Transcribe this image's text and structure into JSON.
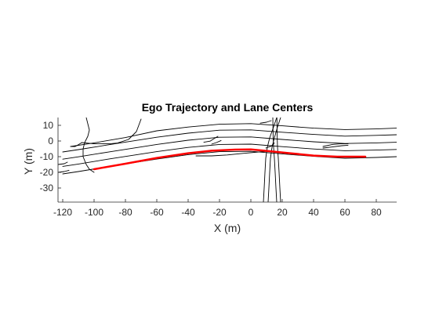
{
  "chart_data": {
    "type": "line",
    "title": "Ego Trajectory and Lane Centers",
    "xlabel": "X (m)",
    "ylabel": "Y (m)",
    "xlim": [
      -123,
      93
    ],
    "ylim": [
      -39,
      15
    ],
    "xticks": [
      -120,
      -100,
      -80,
      -60,
      -40,
      -20,
      0,
      20,
      40,
      60,
      80
    ],
    "yticks": [
      10,
      0,
      -10,
      -20,
      -30
    ],
    "grid": false,
    "box": false,
    "colors": {
      "lanes": "#000000",
      "ego": "#ff0000",
      "axes": "#262626"
    },
    "series": [
      {
        "role": "ego",
        "x": [
          -100,
          -80,
          -60,
          -40,
          -25,
          -10,
          0,
          10,
          25,
          40,
          55,
          65,
          73
        ],
        "y": [
          -18,
          -14.5,
          -10.8,
          -7.8,
          -6.2,
          -5.5,
          -5.4,
          -6.3,
          -7.8,
          -9.3,
          -10.0,
          -10.0,
          -10.0
        ]
      },
      {
        "role": "lane",
        "x": [
          -120,
          -110,
          -90,
          -60,
          -40,
          -20,
          0,
          20,
          40,
          60,
          80,
          93
        ],
        "y": [
          -21,
          -19.5,
          -16.2,
          -11.5,
          -8.7,
          -6.8,
          -6.6,
          -8.2,
          -9.8,
          -11.0,
          -10.5,
          -10.0
        ]
      },
      {
        "role": "lane",
        "x": [
          -120,
          -110,
          -90,
          -60,
          -40,
          -20,
          0,
          20,
          40,
          60,
          80,
          93
        ],
        "y": [
          -16.2,
          -14.7,
          -11.4,
          -6.8,
          -4.1,
          -2.2,
          -2.0,
          -3.6,
          -5.1,
          -6.2,
          -5.8,
          -5.4
        ]
      },
      {
        "role": "lane",
        "x": [
          -120,
          -110,
          -90,
          -60,
          -40,
          -20,
          0,
          20,
          40,
          60,
          80,
          93
        ],
        "y": [
          -11.6,
          -10.1,
          -6.9,
          -2.2,
          0.5,
          2.4,
          2.6,
          1.0,
          -0.5,
          -1.6,
          -1.2,
          -0.8
        ]
      },
      {
        "role": "lane",
        "x": [
          -120,
          -110,
          -90,
          -60,
          -40,
          -20,
          0,
          20,
          40,
          60,
          80,
          93
        ],
        "y": [
          -7.0,
          -5.5,
          -2.3,
          2.4,
          5.0,
          6.9,
          7.1,
          5.6,
          4.2,
          3.1,
          3.6,
          4.0
        ]
      },
      {
        "role": "lane",
        "x": [
          -115,
          -100,
          -80,
          -60,
          -40,
          -20,
          0,
          20,
          40,
          60,
          80,
          93
        ],
        "y": [
          -3.5,
          -1.2,
          2.2,
          6.5,
          8.9,
          10.7,
          11.1,
          9.7,
          8.2,
          7.3,
          7.7,
          8.2
        ]
      },
      {
        "role": "lane",
        "x": [
          -105,
          -104,
          -103,
          -104,
          -106,
          -107,
          -107,
          -105,
          -103,
          -100
        ],
        "y": [
          15,
          11,
          7,
          3,
          -1,
          -5,
          -10,
          -15,
          -18,
          -20
        ]
      },
      {
        "role": "lane",
        "x": [
          -108,
          -100,
          -90,
          -85,
          -78,
          -73,
          -70
        ],
        "y": [
          -1.0,
          -1.8,
          -1.8,
          -1.3,
          1.0,
          6.0,
          14.0
        ]
      },
      {
        "role": "lane",
        "x": [
          -115,
          -112,
          -108
        ],
        "y": [
          -3.5,
          -3.5,
          -1.2
        ]
      },
      {
        "role": "lane",
        "x": [
          -123,
          -119,
          -117
        ],
        "y": [
          -15.0,
          -14.5,
          -13.5
        ]
      },
      {
        "role": "lane",
        "x": [
          -123,
          -119,
          -116
        ],
        "y": [
          -20.0,
          -19.5,
          -18.7
        ]
      },
      {
        "role": "lane",
        "x": [
          8,
          8.5,
          9,
          9.5,
          10.5,
          12,
          14.5,
          16.5
        ],
        "y": [
          -39,
          -30,
          -20,
          -11,
          -4,
          2,
          9,
          15
        ]
      },
      {
        "role": "lane",
        "x": [
          11,
          11.5,
          12,
          12.5,
          13.5,
          15,
          17,
          19
        ],
        "y": [
          -39,
          -30,
          -20,
          -11,
          -4,
          2,
          9,
          15
        ]
      },
      {
        "role": "lane",
        "x": [
          16.5,
          16,
          15.5,
          15,
          14.5,
          14.2,
          14
        ],
        "y": [
          -39,
          -30,
          -20,
          -11,
          -4,
          3,
          15
        ]
      },
      {
        "role": "lane",
        "x": [
          19,
          18.5,
          18,
          17.5,
          17,
          16.8,
          16.6
        ],
        "y": [
          -39,
          -30,
          -20,
          -11,
          -4,
          3,
          15
        ]
      },
      {
        "role": "lane",
        "x": [
          9.5,
          11,
          13,
          15
        ],
        "y": [
          -4.5,
          -4.0,
          -3.3,
          -1.2
        ]
      },
      {
        "role": "lane",
        "x": [
          -30,
          -26,
          -24,
          -21
        ],
        "y": [
          -0.8,
          -0.1,
          1.2,
          3.0
        ]
      },
      {
        "role": "lane",
        "x": [
          -25,
          -22,
          -19
        ],
        "y": [
          -2.0,
          -1.0,
          0.3
        ]
      },
      {
        "role": "lane",
        "x": [
          -35,
          -25,
          -15,
          -5,
          5,
          10
        ],
        "y": [
          -9.5,
          -9.5,
          -8.9,
          -7.9,
          -7.0,
          -6.6
        ]
      },
      {
        "role": "lane",
        "x": [
          46,
          52,
          58,
          62
        ],
        "y": [
          -3.5,
          -2.2,
          -1.7,
          -1.8
        ]
      },
      {
        "role": "lane",
        "x": [
          46,
          52,
          58,
          62
        ],
        "y": [
          -4.5,
          -3.8,
          -3.0,
          -2.7
        ]
      },
      {
        "role": "lane",
        "x": [
          6,
          10,
          13
        ],
        "y": [
          11.4,
          12.0,
          13.0
        ]
      }
    ]
  }
}
